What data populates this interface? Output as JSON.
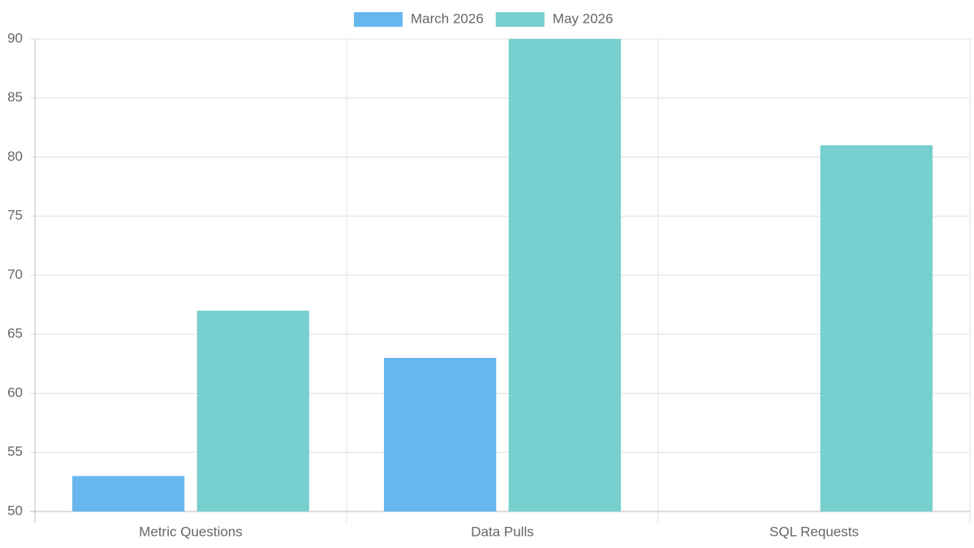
{
  "chart_data": {
    "type": "bar",
    "categories": [
      "Metric Questions",
      "Data Pulls",
      "SQL Requests"
    ],
    "series": [
      {
        "name": "March 2026",
        "color": "#67b7ee",
        "values": [
          53,
          63,
          null
        ]
      },
      {
        "name": "May 2026",
        "color": "#77cfcf",
        "values": [
          67,
          90,
          81
        ]
      }
    ],
    "ylim": [
      50,
      90
    ],
    "yticks": [
      50,
      55,
      60,
      65,
      70,
      75,
      80,
      85,
      90
    ],
    "grid": true,
    "legend": "top"
  }
}
